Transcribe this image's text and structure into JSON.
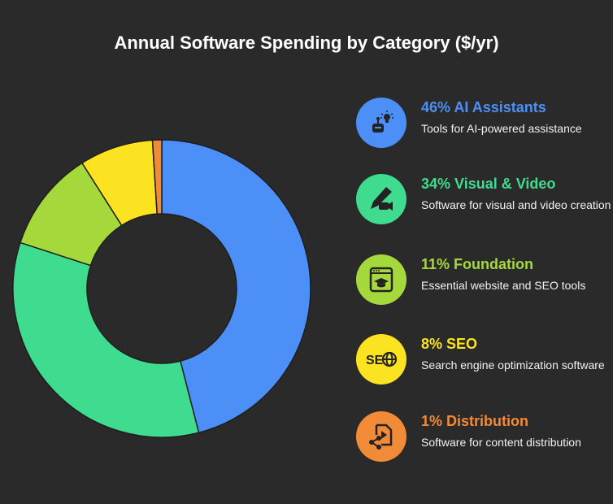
{
  "chart_data": {
    "type": "pie",
    "donut": true,
    "title": "Annual Software Spending by Category ($/yr)",
    "categories": [
      "AI Assistants",
      "Visual & Video",
      "Foundation",
      "SEO",
      "Distribution"
    ],
    "values": [
      46,
      34,
      11,
      8,
      1
    ],
    "unit": "%",
    "colors": [
      "#4b8ff7",
      "#3fdc8f",
      "#a5d93b",
      "#fbe321",
      "#f28b37"
    ],
    "legend_placement": "right",
    "legend": [
      {
        "label": "46% AI Assistants",
        "desc": "Tools for AI-powered assistance",
        "icon": "robot-lightbulb-icon"
      },
      {
        "label": "34% Visual & Video",
        "desc": "Software for visual and video creation",
        "icon": "pen-video-camera-icon"
      },
      {
        "label": "11% Foundation",
        "desc": "Essential website and SEO tools",
        "icon": "browser-graduation-cap-icon"
      },
      {
        "label": "8% SEO",
        "desc": "Search engine optimization software",
        "icon": "seo-globe-icon"
      },
      {
        "label": "1% Distribution",
        "desc": "Software for content distribution",
        "icon": "share-file-icon"
      }
    ]
  }
}
